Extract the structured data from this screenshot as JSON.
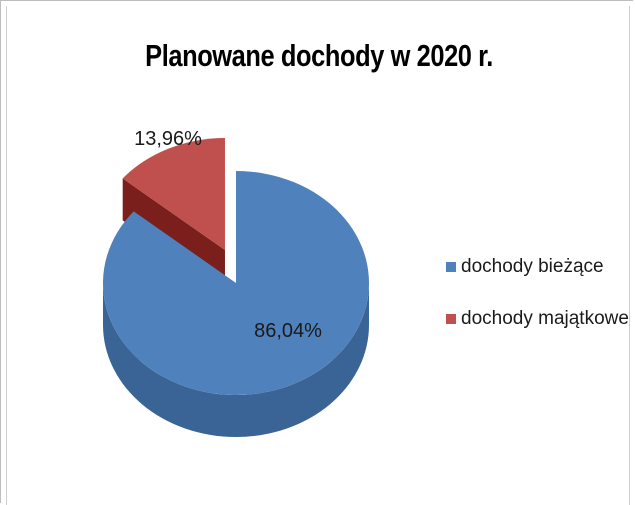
{
  "chart_data": {
    "type": "pie",
    "title": "Planowane dochody w 2020  r.",
    "slices": [
      {
        "name": "dochody bieżące",
        "value": 86.04,
        "label": "86,04%",
        "color": "#4f81bd",
        "side_color": "#3a6496"
      },
      {
        "name": "dochody majątkowe",
        "value": 13.96,
        "label": "13,96%",
        "color": "#c0504d",
        "side_color": "#7a1f1c"
      }
    ],
    "legend_position": "right",
    "exploded_slice": "dochody majątkowe",
    "style": "3d"
  }
}
